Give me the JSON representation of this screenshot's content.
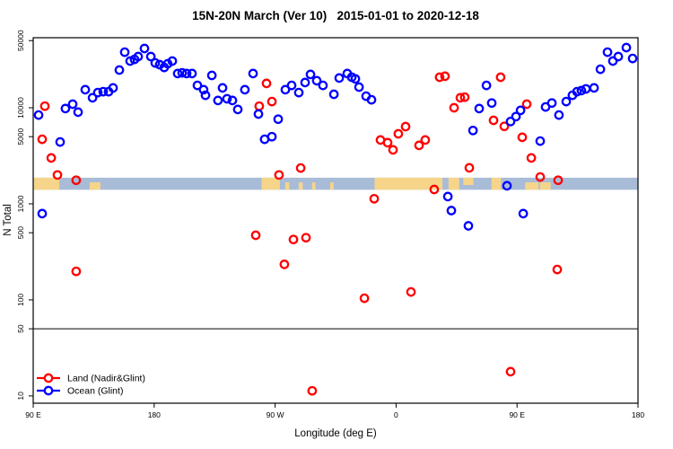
{
  "chart_data": {
    "type": "scatter",
    "title": "15N-20N March (Ver 10)   2015-01-01 to 2020-12-18",
    "xlabel": "Longitude (deg E)",
    "ylabel": "N Total",
    "x_axis": {
      "range_deg": [
        90,
        540
      ],
      "ticks": [
        {
          "deg": 90,
          "label": "90 E"
        },
        {
          "deg": 180,
          "label": "180"
        },
        {
          "deg": 270,
          "label": "90 W"
        },
        {
          "deg": 360,
          "label": "0"
        },
        {
          "deg": 450,
          "label": "90 E"
        },
        {
          "deg": 540,
          "label": "180"
        }
      ]
    },
    "y_axis": {
      "scale": "log10",
      "range": [
        8.4,
        53600
      ],
      "ticks": [
        {
          "value": 50000,
          "label": "50000"
        },
        {
          "value": 10000,
          "label": "10000"
        },
        {
          "value": 5000,
          "label": "5000"
        },
        {
          "value": 1000,
          "label": "1000"
        },
        {
          "value": 500,
          "label": "500"
        },
        {
          "value": 100,
          "label": "100"
        },
        {
          "value": 50,
          "label": "50"
        },
        {
          "value": 10,
          "label": "10"
        }
      ]
    },
    "reference_line": {
      "value": 50,
      "color": "#000000"
    },
    "map_band": {
      "N_range": [
        1400,
        1870
      ],
      "ocean_color": "#a8bcd8",
      "land_color": "#f6d58b",
      "land_segments": [
        {
          "from": 90,
          "to": 109.4,
          "part": "full"
        },
        {
          "from": 132,
          "to": 140,
          "part": "bottom"
        },
        {
          "from": 260,
          "to": 273.5,
          "part": "full"
        },
        {
          "from": 277.5,
          "to": 280.5,
          "part": "bottom"
        },
        {
          "from": 287.5,
          "to": 290.5,
          "part": "bottom"
        },
        {
          "from": 297.5,
          "to": 300,
          "part": "bottom"
        },
        {
          "from": 311,
          "to": 313.5,
          "part": "bottom"
        },
        {
          "from": 344,
          "to": 394.5,
          "part": "full"
        },
        {
          "from": 399,
          "to": 407,
          "part": "full"
        },
        {
          "from": 410,
          "to": 417.5,
          "part": "top"
        },
        {
          "from": 431,
          "to": 438,
          "part": "full"
        },
        {
          "from": 456,
          "to": 466,
          "part": "bottom"
        },
        {
          "from": 467,
          "to": 475,
          "part": "bottom"
        }
      ]
    },
    "legend": {
      "position": "bottom-left",
      "items": [
        {
          "label": "Land (Nadir&Glint)",
          "color": "#ff0000"
        },
        {
          "label": "Ocean (Glint)",
          "color": "#0000ff"
        }
      ]
    },
    "series": [
      {
        "name": "Land (Nadir&Glint)",
        "color": "#ff0000",
        "marker": "open-circle",
        "points": [
          [
            96.7,
            4700
          ],
          [
            98.7,
            10400
          ],
          [
            103.4,
            3000
          ],
          [
            108,
            2000
          ],
          [
            122,
            1760
          ],
          [
            122,
            198
          ],
          [
            255.6,
            470
          ],
          [
            258.2,
            10400
          ],
          [
            263.6,
            17900
          ],
          [
            267.6,
            11600
          ],
          [
            272.9,
            2000
          ],
          [
            276.9,
            234
          ],
          [
            283.6,
            425
          ],
          [
            289,
            2360
          ],
          [
            293,
            444
          ],
          [
            297.6,
            11.3
          ],
          [
            336.4,
            104
          ],
          [
            343.7,
            1130
          ],
          [
            348.4,
            4620
          ],
          [
            353.7,
            4330
          ],
          [
            357.7,
            3640
          ],
          [
            361.7,
            5360
          ],
          [
            367.1,
            6360
          ],
          [
            371.1,
            121
          ],
          [
            377.1,
            4060
          ],
          [
            381.7,
            4620
          ],
          [
            388.4,
            1410
          ],
          [
            392.4,
            20800
          ],
          [
            396.4,
            21300
          ],
          [
            403.1,
            10000
          ],
          [
            407.8,
            12700
          ],
          [
            411.1,
            12900
          ],
          [
            414.5,
            2370
          ],
          [
            432.5,
            7400
          ],
          [
            437.8,
            20800
          ],
          [
            440.5,
            6400
          ],
          [
            445.2,
            17.9
          ],
          [
            453.9,
            4920
          ],
          [
            457.2,
            10900
          ],
          [
            460.6,
            3000
          ],
          [
            467.2,
            1900
          ],
          [
            479.9,
            207
          ],
          [
            480.6,
            1760
          ]
        ]
      },
      {
        "name": "Ocean (Glint)",
        "color": "#0000ff",
        "marker": "open-circle",
        "points": [
          [
            94,
            8400
          ],
          [
            96.7,
            790
          ],
          [
            110,
            4400
          ],
          [
            114,
            9800
          ],
          [
            119.4,
            10900
          ],
          [
            123.4,
            9000
          ],
          [
            128.7,
            15400
          ],
          [
            134.1,
            12700
          ],
          [
            138.1,
            14400
          ],
          [
            142.1,
            14700
          ],
          [
            146.1,
            14700
          ],
          [
            149.4,
            16100
          ],
          [
            154.1,
            24700
          ],
          [
            158.1,
            37900
          ],
          [
            162.1,
            30600
          ],
          [
            165.4,
            31900
          ],
          [
            168.1,
            34100
          ],
          [
            172.8,
            41400
          ],
          [
            177.5,
            34100
          ],
          [
            180.8,
            29300
          ],
          [
            184.1,
            28100
          ],
          [
            187.5,
            26300
          ],
          [
            190.1,
            28700
          ],
          [
            193.5,
            30600
          ],
          [
            197.5,
            22700
          ],
          [
            200.8,
            23100
          ],
          [
            204.2,
            22700
          ],
          [
            208.2,
            22700
          ],
          [
            212.2,
            17100
          ],
          [
            216.8,
            15400
          ],
          [
            218.2,
            13500
          ],
          [
            222.9,
            21700
          ],
          [
            227.5,
            11900
          ],
          [
            230.9,
            16100
          ],
          [
            234.2,
            12400
          ],
          [
            238.2,
            11900
          ],
          [
            242.2,
            9600
          ],
          [
            247.5,
            15400
          ],
          [
            253.6,
            22700
          ],
          [
            257.6,
            8600
          ],
          [
            262.2,
            4700
          ],
          [
            267.6,
            5000
          ],
          [
            272.3,
            7600
          ],
          [
            277.6,
            15400
          ],
          [
            282.3,
            17100
          ],
          [
            287.6,
            14400
          ],
          [
            292.3,
            18300
          ],
          [
            296.3,
            22200
          ],
          [
            301,
            19100
          ],
          [
            305.6,
            17100
          ],
          [
            313.7,
            13800
          ],
          [
            317.7,
            20400
          ],
          [
            323.7,
            22700
          ],
          [
            327,
            20800
          ],
          [
            329.7,
            20000
          ],
          [
            332.4,
            16400
          ],
          [
            337.7,
            13200
          ],
          [
            341.7,
            12100
          ],
          [
            398.5,
            1190
          ],
          [
            401.1,
            850
          ],
          [
            413.8,
            590
          ],
          [
            417.2,
            5800
          ],
          [
            421.8,
            9800
          ],
          [
            427.2,
            17100
          ],
          [
            431.2,
            11200
          ],
          [
            442.5,
            1540
          ],
          [
            445.2,
            7200
          ],
          [
            449.2,
            8100
          ],
          [
            452.6,
            9400
          ],
          [
            454.6,
            790
          ],
          [
            467.2,
            4500
          ],
          [
            471.2,
            10200
          ],
          [
            475.9,
            11200
          ],
          [
            481.2,
            8400
          ],
          [
            486.6,
            11600
          ],
          [
            491.2,
            13500
          ],
          [
            494.6,
            14700
          ],
          [
            497.9,
            15100
          ],
          [
            501.3,
            15700
          ],
          [
            507.3,
            16100
          ],
          [
            512,
            25200
          ],
          [
            517.3,
            37900
          ],
          [
            521.3,
            30600
          ],
          [
            525.3,
            34100
          ],
          [
            531.3,
            42300
          ],
          [
            536,
            32600
          ]
        ]
      }
    ]
  }
}
